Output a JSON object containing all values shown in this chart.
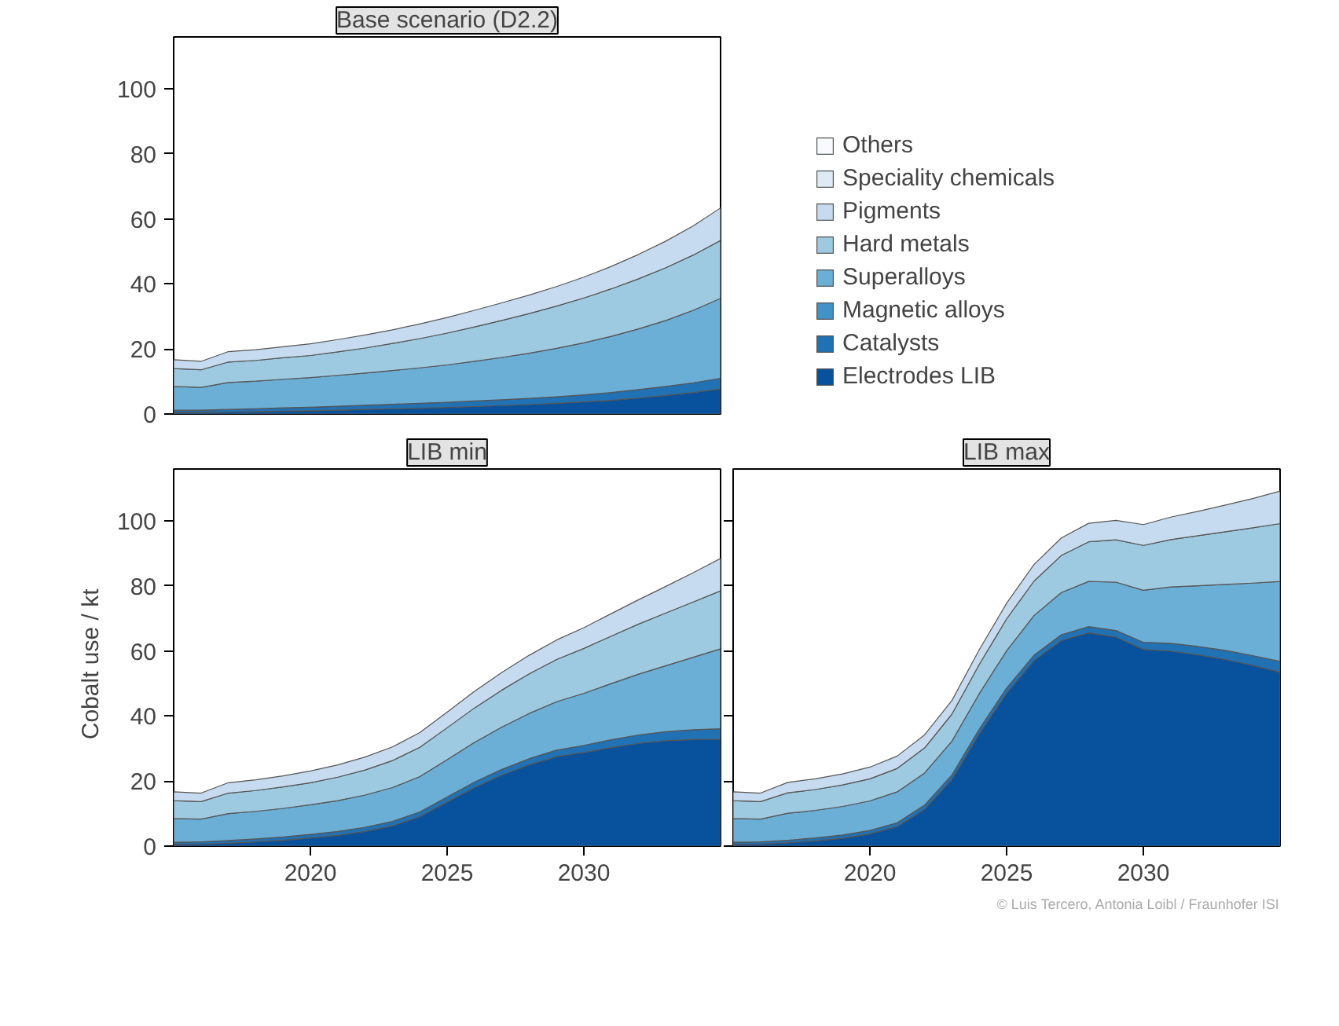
{
  "chart_data": [
    {
      "type": "area",
      "stacked": true,
      "title": "Base scenario (D2.2)",
      "x": [
        2015,
        2016,
        2017,
        2018,
        2019,
        2020,
        2021,
        2022,
        2023,
        2024,
        2025,
        2026,
        2027,
        2028,
        2029,
        2030,
        2031,
        2032,
        2033,
        2034,
        2035
      ],
      "xlim": [
        2015,
        2035
      ],
      "ylim": [
        0,
        116
      ],
      "xticks": [
        2020,
        2025,
        2030
      ],
      "yticks": [
        0,
        20,
        40,
        60,
        80,
        100
      ],
      "tick_labels": "y",
      "legend": "right",
      "series": [
        {
          "name": "Electrodes LIB",
          "color": "#08519c",
          "values": [
            0.5,
            0.5,
            0.6,
            0.7,
            0.9,
            1.0,
            1.2,
            1.4,
            1.6,
            1.8,
            2.0,
            2.3,
            2.6,
            2.9,
            3.3,
            3.7,
            4.2,
            4.9,
            5.7,
            6.6,
            7.7
          ]
        },
        {
          "name": "Catalysts",
          "color": "#2171b5",
          "values": [
            0.7,
            0.7,
            0.8,
            0.9,
            1.0,
            1.1,
            1.2,
            1.3,
            1.4,
            1.5,
            1.6,
            1.7,
            1.8,
            1.9,
            2.0,
            2.2,
            2.4,
            2.6,
            2.8,
            3.0,
            3.3
          ]
        },
        {
          "name": "Magnetic alloys",
          "color": "#4292c6",
          "values": [
            null,
            null,
            null,
            null,
            null,
            null,
            null,
            null,
            null,
            null,
            null,
            null,
            null,
            null,
            null,
            null,
            null,
            null,
            null,
            null,
            null
          ]
        },
        {
          "name": "Superalloys",
          "color": "#6baed6",
          "values": [
            7.3,
            7.0,
            8.3,
            8.5,
            8.8,
            9.1,
            9.5,
            9.9,
            10.4,
            10.9,
            11.5,
            12.2,
            13.0,
            13.9,
            14.9,
            16.0,
            17.3,
            18.7,
            20.3,
            22.3,
            24.6
          ]
        },
        {
          "name": "Hard metals",
          "color": "#9ecae1",
          "values": [
            5.5,
            5.4,
            6.3,
            6.4,
            6.6,
            6.8,
            7.2,
            7.7,
            8.3,
            9.0,
            9.8,
            10.6,
            11.4,
            12.2,
            13.0,
            13.8,
            14.6,
            15.4,
            16.2,
            17.0,
            17.8
          ]
        },
        {
          "name": "Pigments",
          "color": "#c6dbef",
          "values": [
            2.7,
            2.6,
            3.2,
            3.3,
            3.4,
            3.6,
            3.8,
            4.0,
            4.2,
            4.5,
            4.8,
            5.1,
            5.4,
            5.7,
            6.0,
            6.4,
            6.9,
            7.5,
            8.2,
            9.0,
            10.0
          ]
        },
        {
          "name": "Speciality chemicals",
          "color": "#deebf7",
          "values": [
            null,
            null,
            null,
            null,
            null,
            null,
            null,
            null,
            null,
            null,
            null,
            null,
            null,
            null,
            null,
            null,
            null,
            null,
            null,
            null,
            null
          ]
        },
        {
          "name": "Others",
          "color": "#f7fbff",
          "values": [
            null,
            null,
            null,
            null,
            null,
            null,
            null,
            null,
            null,
            null,
            null,
            null,
            null,
            null,
            null,
            null,
            null,
            null,
            null,
            null,
            null
          ]
        }
      ]
    },
    {
      "type": "area",
      "stacked": true,
      "title": "LIB min",
      "ylabel": "Cobalt use  /  kt",
      "x": [
        2015,
        2016,
        2017,
        2018,
        2019,
        2020,
        2021,
        2022,
        2023,
        2024,
        2025,
        2026,
        2027,
        2028,
        2029,
        2030,
        2031,
        2032,
        2033,
        2034,
        2035
      ],
      "xlim": [
        2015,
        2035
      ],
      "ylim": [
        0,
        116
      ],
      "xticks": [
        2020,
        2025,
        2030
      ],
      "yticks": [
        0,
        20,
        40,
        60,
        80,
        100
      ],
      "series": [
        {
          "color": "#08519c",
          "values": [
            0.5,
            0.6,
            0.9,
            1.3,
            1.8,
            2.5,
            3.3,
            4.5,
            6.2,
            9.0,
            13.5,
            18.0,
            21.8,
            25.0,
            27.5,
            28.8,
            30.3,
            31.6,
            32.4,
            32.8,
            32.8
          ]
        },
        {
          "color": "#2171b5",
          "values": [
            0.7,
            0.7,
            0.8,
            0.9,
            1.0,
            1.1,
            1.2,
            1.3,
            1.4,
            1.5,
            1.6,
            1.7,
            1.8,
            1.9,
            2.0,
            2.2,
            2.4,
            2.6,
            2.8,
            3.0,
            3.3
          ]
        },
        {
          "color": "#6baed6",
          "values": [
            7.3,
            7.0,
            8.3,
            8.5,
            8.8,
            9.1,
            9.5,
            9.9,
            10.4,
            10.9,
            11.5,
            12.2,
            13.0,
            13.9,
            14.9,
            16.0,
            17.3,
            18.7,
            20.3,
            22.3,
            24.6
          ]
        },
        {
          "color": "#9ecae1",
          "values": [
            5.5,
            5.4,
            6.3,
            6.4,
            6.6,
            6.8,
            7.2,
            7.7,
            8.3,
            9.0,
            9.8,
            10.6,
            11.4,
            12.2,
            13.0,
            13.8,
            14.6,
            15.4,
            16.2,
            17.0,
            17.8
          ]
        },
        {
          "color": "#c6dbef",
          "values": [
            2.7,
            2.6,
            3.2,
            3.3,
            3.4,
            3.6,
            3.8,
            4.0,
            4.2,
            4.5,
            4.8,
            5.1,
            5.4,
            5.7,
            6.0,
            6.4,
            6.9,
            7.5,
            8.2,
            9.0,
            10.0
          ]
        }
      ]
    },
    {
      "type": "area",
      "stacked": true,
      "title": "LIB max",
      "x": [
        2015,
        2016,
        2017,
        2018,
        2019,
        2020,
        2021,
        2022,
        2023,
        2024,
        2025,
        2026,
        2027,
        2028,
        2029,
        2030,
        2031,
        2032,
        2033,
        2034,
        2035
      ],
      "xlim": [
        2015,
        2035
      ],
      "ylim": [
        0,
        116
      ],
      "xticks": [
        2020,
        2025,
        2030
      ],
      "yticks": [
        0,
        20,
        40,
        60,
        80,
        100
      ],
      "tick_labels": "x",
      "annotations": [
        "© Luis Tercero, Antonia Loibl / Fraunhofer ISI"
      ],
      "series": [
        {
          "color": "#08519c",
          "values": [
            0.5,
            0.6,
            1.0,
            1.6,
            2.4,
            3.7,
            6.0,
            11.3,
            20.5,
            34.5,
            47.0,
            57.0,
            63.2,
            65.6,
            64.3,
            60.5,
            60.0,
            58.8,
            57.4,
            55.6,
            53.5
          ]
        },
        {
          "color": "#2171b5",
          "values": [
            0.7,
            0.7,
            0.8,
            0.9,
            1.0,
            1.1,
            1.2,
            1.3,
            1.4,
            1.5,
            1.6,
            1.7,
            1.8,
            1.9,
            2.0,
            2.2,
            2.4,
            2.6,
            2.8,
            3.0,
            3.3
          ]
        },
        {
          "color": "#6baed6",
          "values": [
            7.3,
            7.0,
            8.3,
            8.5,
            8.8,
            9.1,
            9.5,
            9.9,
            10.4,
            10.9,
            11.5,
            12.2,
            13.0,
            13.9,
            14.9,
            16.0,
            17.3,
            18.7,
            20.3,
            22.3,
            24.6
          ]
        },
        {
          "color": "#9ecae1",
          "values": [
            5.5,
            5.4,
            6.3,
            6.4,
            6.6,
            6.8,
            7.2,
            7.7,
            8.3,
            9.0,
            9.8,
            10.6,
            11.4,
            12.2,
            13.0,
            13.8,
            14.6,
            15.4,
            16.2,
            17.0,
            17.8
          ]
        },
        {
          "color": "#c6dbef",
          "values": [
            2.7,
            2.6,
            3.2,
            3.3,
            3.4,
            3.6,
            3.8,
            4.0,
            4.2,
            4.5,
            4.8,
            5.1,
            5.4,
            5.7,
            6.0,
            6.4,
            6.9,
            7.5,
            8.2,
            9.0,
            10.0
          ]
        }
      ]
    }
  ]
}
